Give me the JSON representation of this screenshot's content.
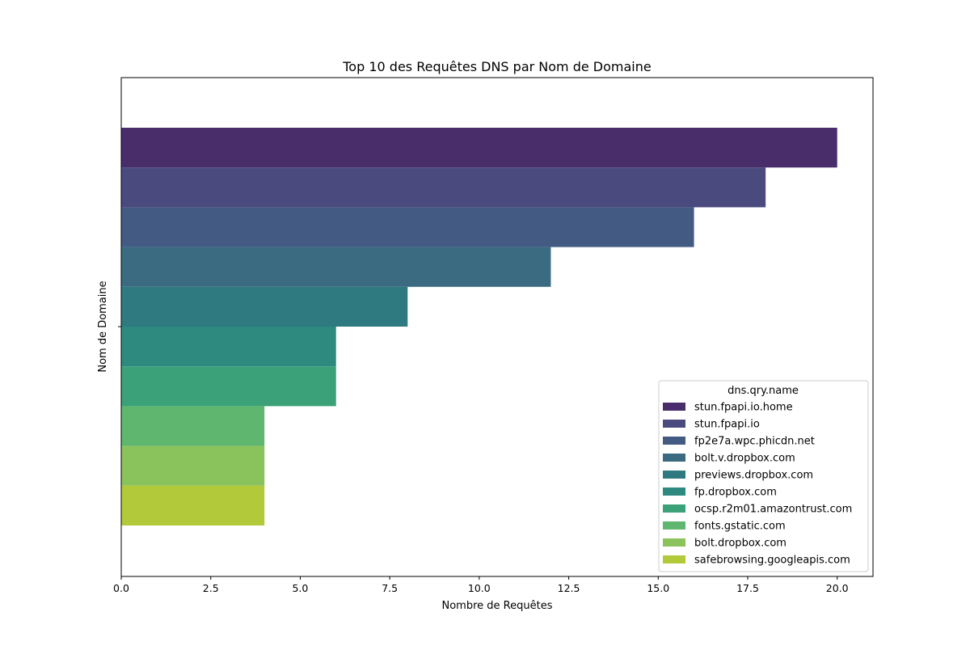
{
  "chart_data": {
    "type": "bar",
    "orientation": "horizontal",
    "title": "Top 10 des Requêtes DNS par Nom de Domaine",
    "xlabel": "Nombre de Requêtes",
    "ylabel": "Nom de Domaine",
    "xlim": [
      0,
      21
    ],
    "x_ticks": [
      "0.0",
      "2.5",
      "5.0",
      "7.5",
      "10.0",
      "12.5",
      "15.0",
      "17.5",
      "20.0"
    ],
    "grid": false,
    "legend": {
      "title": "dns.qry.name",
      "placement": "lower-right"
    },
    "series": [
      {
        "name": "stun.fpapi.io.home",
        "value": 20,
        "color": "#482d6a"
      },
      {
        "name": "stun.fpapi.io",
        "value": 18,
        "color": "#4a4a7e"
      },
      {
        "name": "fp2e7a.wpc.phicdn.net",
        "value": 16,
        "color": "#435b83"
      },
      {
        "name": "bolt.v.dropbox.com",
        "value": 12,
        "color": "#3a6b80"
      },
      {
        "name": "previews.dropbox.com",
        "value": 8,
        "color": "#2f7a80"
      },
      {
        "name": "fp.dropbox.com",
        "value": 6,
        "color": "#2e8a7f"
      },
      {
        "name": "ocsp.r2m01.amazontrust.com",
        "value": 6,
        "color": "#3ba179"
      },
      {
        "name": "fonts.gstatic.com",
        "value": 4,
        "color": "#5eb66f"
      },
      {
        "name": "bolt.dropbox.com",
        "value": 4,
        "color": "#8ac35b"
      },
      {
        "name": "safebrowsing.googleapis.com",
        "value": 4,
        "color": "#b2c93a"
      }
    ]
  }
}
